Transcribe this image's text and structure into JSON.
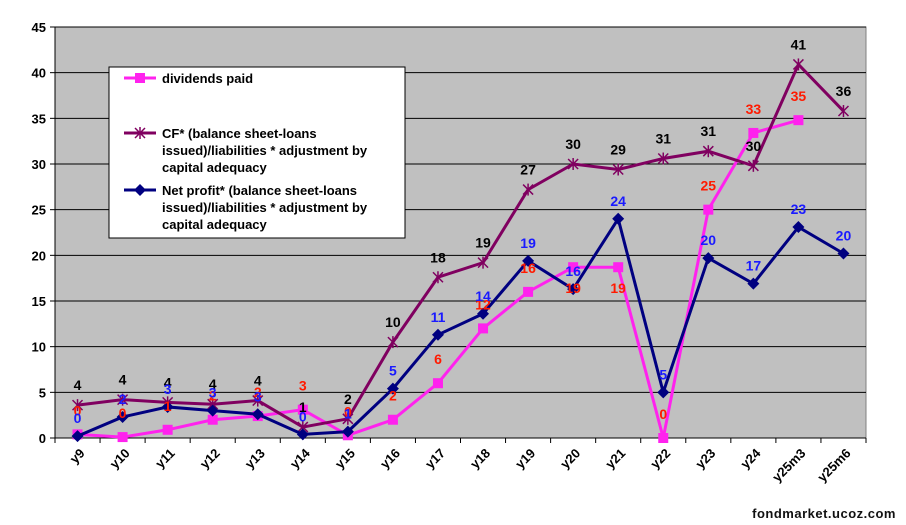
{
  "chart_data": {
    "type": "line",
    "categories": [
      "y9",
      "y10",
      "y11",
      "y12",
      "y13",
      "y14",
      "y15",
      "y16",
      "y17",
      "y18",
      "y19",
      "y20",
      "y21",
      "y22",
      "y23",
      "y24",
      "y25m3",
      "y25m6"
    ],
    "ylim": [
      0,
      45
    ],
    "yticks": [
      0,
      5,
      10,
      15,
      20,
      25,
      30,
      35,
      40,
      45
    ],
    "grid": true,
    "plot_background": "#c0c0c0",
    "legend_placement": "top-left",
    "series": [
      {
        "name": "dividends paid",
        "color": "#ff22ee",
        "marker": "square",
        "label_color": "#ff1a00",
        "values": [
          0.4,
          0.1,
          0.9,
          2.0,
          2.4,
          3.1,
          0.3,
          2.0,
          6.0,
          12.0,
          16.0,
          18.7,
          18.7,
          0.0,
          25.0,
          33.4,
          34.8,
          null
        ],
        "labels": [
          "0",
          "0",
          "1",
          "2",
          "2",
          "3",
          "0",
          "2",
          "6",
          "12",
          "16",
          "19",
          "19",
          "0",
          "25",
          "33",
          "35",
          ""
        ]
      },
      {
        "name": "CF* (balance sheet-loans issued)/liabilities * adjustment by capital adequacy",
        "color": "#800060",
        "marker": "star",
        "label_color": "#000000",
        "values": [
          3.6,
          4.2,
          3.9,
          3.7,
          4.1,
          1.2,
          2.1,
          10.5,
          17.6,
          19.2,
          27.2,
          30.0,
          29.4,
          30.6,
          31.4,
          29.8,
          40.9,
          35.8
        ],
        "labels": [
          "4",
          "4",
          "4",
          "4",
          "4",
          "1",
          "2",
          "10",
          "18",
          "19",
          "27",
          "30",
          "29",
          "31",
          "31",
          "30",
          "41",
          "36"
        ]
      },
      {
        "name": "Net profit* (balance sheet-loans issued)/liabilities * adjustment by capital adequacy",
        "color": "#000080",
        "marker": "diamond",
        "label_color": "#1a1aff",
        "values": [
          0.2,
          2.3,
          3.4,
          3.0,
          2.6,
          0.4,
          0.7,
          5.4,
          11.3,
          13.6,
          19.4,
          16.3,
          24.0,
          5.0,
          19.7,
          16.9,
          23.1,
          20.2
        ],
        "labels": [
          "0",
          "2",
          "3",
          "3",
          "3",
          "0",
          "1",
          "5",
          "11",
          "14",
          "19",
          "16",
          "24",
          "5",
          "20",
          "17",
          "23",
          "20"
        ]
      }
    ]
  },
  "watermark": "fondmarket.ucoz.com"
}
